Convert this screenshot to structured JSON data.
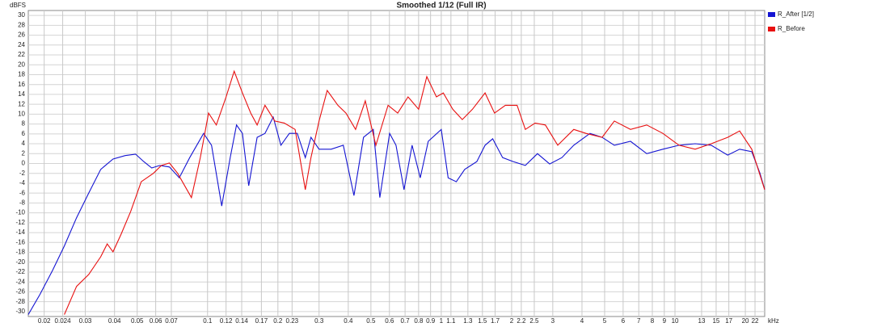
{
  "chart_data": {
    "type": "line",
    "title": "Smoothed 1/12 (Full IR)",
    "ylabel": "dBFS",
    "x_unit": "kHz",
    "xscale": "log",
    "grid": true,
    "legend": "right",
    "xlim": [
      0.0171,
      24.2
    ],
    "ylim": [
      -31,
      31
    ],
    "xticks": [
      0.02,
      0.024,
      0.03,
      0.04,
      0.05,
      0.06,
      0.07,
      0.1,
      0.12,
      0.14,
      0.17,
      0.2,
      0.23,
      0.3,
      0.4,
      0.5,
      0.6,
      0.7,
      0.8,
      0.9,
      1,
      1.1,
      1.3,
      1.5,
      1.7,
      2,
      2.2,
      2.5,
      3,
      4,
      5,
      6,
      7,
      8,
      9,
      10,
      13,
      15,
      17,
      20,
      22
    ],
    "yticks": [
      -30,
      -28,
      -26,
      -24,
      -22,
      -20,
      -18,
      -16,
      -14,
      -12,
      -10,
      -8,
      -6,
      -4,
      -2,
      0,
      2,
      4,
      6,
      8,
      10,
      12,
      14,
      16,
      18,
      20,
      22,
      24,
      26,
      28,
      30
    ],
    "series": [
      {
        "name": "R_After [1/2]",
        "color": "#1414d2",
        "x": [
          0.0171,
          0.0192,
          0.0217,
          0.0244,
          0.0275,
          0.031,
          0.0349,
          0.0394,
          0.0444,
          0.0492,
          0.0533,
          0.0577,
          0.0625,
          0.0687,
          0.0757,
          0.0839,
          0.0962,
          0.104,
          0.115,
          0.125,
          0.133,
          0.141,
          0.15,
          0.163,
          0.176,
          0.191,
          0.206,
          0.224,
          0.242,
          0.262,
          0.277,
          0.3,
          0.338,
          0.381,
          0.423,
          0.465,
          0.512,
          0.546,
          0.601,
          0.64,
          0.693,
          0.75,
          0.813,
          0.88,
          1,
          1.07,
          1.16,
          1.26,
          1.42,
          1.54,
          1.66,
          1.83,
          2.03,
          2.29,
          2.58,
          2.91,
          3.28,
          3.69,
          4.33,
          4.88,
          5.5,
          6.45,
          7.57,
          8.87,
          10.4,
          12.2,
          14.3,
          16.8,
          18.9,
          21.3,
          23.1,
          24.2
        ],
        "values": [
          -30.6,
          -26.5,
          -21.7,
          -16.7,
          -11,
          -6,
          -1.2,
          0.9,
          1.6,
          1.9,
          0.4,
          -0.9,
          -0.4,
          -0.7,
          -2.9,
          1.2,
          6.1,
          3.7,
          -8.6,
          1.2,
          7.8,
          6.1,
          -4.5,
          5.3,
          6.1,
          9.4,
          3.7,
          6.1,
          6.1,
          1.2,
          5.3,
          2.9,
          2.9,
          3.7,
          -6.5,
          5.3,
          6.9,
          -6.9,
          6.1,
          3.7,
          -5.3,
          3.7,
          -2.9,
          4.5,
          6.9,
          -2.9,
          -3.7,
          -1.2,
          0.4,
          3.7,
          5,
          1.2,
          0.4,
          -0.4,
          2,
          -0.1,
          1.2,
          3.7,
          6.1,
          5.3,
          3.7,
          4.5,
          2,
          2.9,
          3.7,
          4,
          3.7,
          1.7,
          2.9,
          2.4,
          -2,
          -5.3
        ]
      },
      {
        "name": "R_Before",
        "color": "#e81010",
        "x": [
          0.0244,
          0.0275,
          0.031,
          0.0349,
          0.0372,
          0.0394,
          0.0427,
          0.0469,
          0.052,
          0.0586,
          0.0635,
          0.0687,
          0.0745,
          0.0853,
          0.0931,
          0.101,
          0.109,
          0.12,
          0.13,
          0.141,
          0.153,
          0.163,
          0.176,
          0.194,
          0.213,
          0.237,
          0.25,
          0.262,
          0.277,
          0.3,
          0.325,
          0.361,
          0.391,
          0.43,
          0.473,
          0.525,
          0.592,
          0.651,
          0.721,
          0.8,
          0.867,
          0.953,
          1.02,
          1.12,
          1.23,
          1.36,
          1.54,
          1.69,
          1.88,
          2.11,
          2.29,
          2.52,
          2.79,
          3.15,
          3.69,
          4.16,
          4.88,
          5.5,
          6.45,
          7.57,
          8.87,
          10.4,
          12.2,
          14.3,
          16.8,
          18.9,
          21.3,
          24.2
        ],
        "values": [
          -30.6,
          -24.9,
          -22.5,
          -18.9,
          -16.3,
          -17.9,
          -14.3,
          -9.7,
          -3.7,
          -2,
          -0.4,
          0.1,
          -2,
          -6.9,
          1.2,
          10.2,
          7.8,
          13.5,
          18.7,
          14.3,
          10.2,
          7.8,
          11.8,
          8.6,
          8.2,
          6.9,
          0.4,
          -5.3,
          1.2,
          8.6,
          14.8,
          11.8,
          10.2,
          6.9,
          12.7,
          3.7,
          11.8,
          10.2,
          13.5,
          11,
          17.6,
          13.5,
          14.3,
          11,
          8.9,
          11,
          14.3,
          10.2,
          11.8,
          11.8,
          6.9,
          8.2,
          7.8,
          3.7,
          6.9,
          6.1,
          5.3,
          8.6,
          6.9,
          7.8,
          6.1,
          3.7,
          2.9,
          4,
          5.3,
          6.6,
          2.9,
          -5.3
        ]
      }
    ]
  }
}
